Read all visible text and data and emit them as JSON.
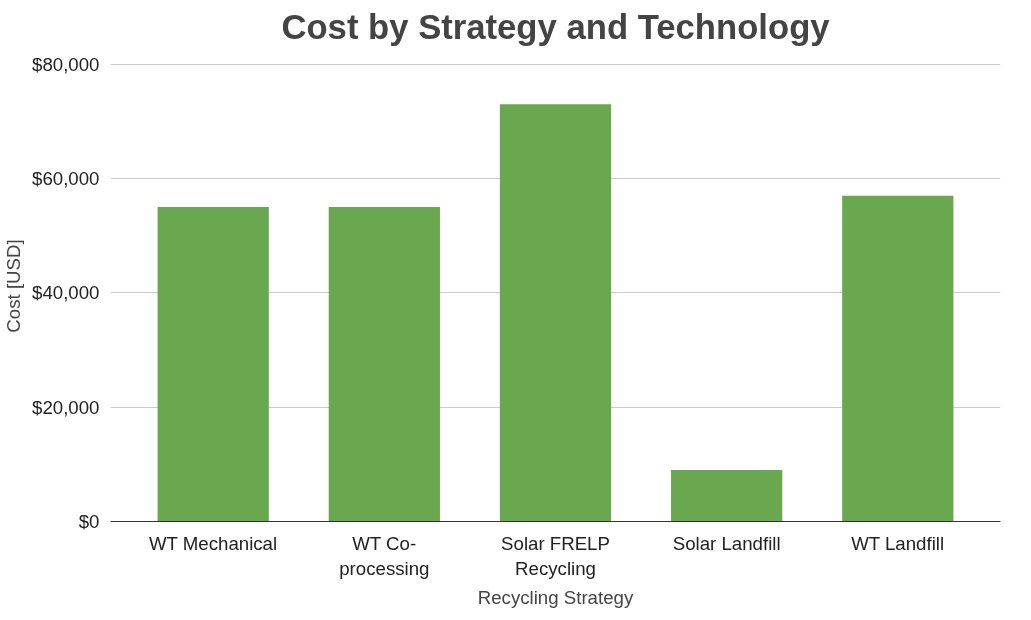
{
  "chart_data": {
    "type": "bar",
    "title": "Cost by Strategy and Technology",
    "xlabel": "Recycling Strategy",
    "ylabel": "Cost [USD]",
    "categories": [
      "WT Mechanical",
      "WT Co-processing",
      "Solar FRELP Recycling",
      "Solar Landfill",
      "WT Landfill"
    ],
    "values": [
      55000,
      55000,
      73000,
      9000,
      57000
    ],
    "color": "#6aa84f",
    "ylim": [
      0,
      80000
    ],
    "yticks": [
      {
        "value": 0,
        "label": "$0"
      },
      {
        "value": 20000,
        "label": "$20,000"
      },
      {
        "value": 40000,
        "label": "$40,000"
      },
      {
        "value": 60000,
        "label": "$60,000"
      },
      {
        "value": 80000,
        "label": "$80,000"
      }
    ],
    "grid": "y"
  }
}
